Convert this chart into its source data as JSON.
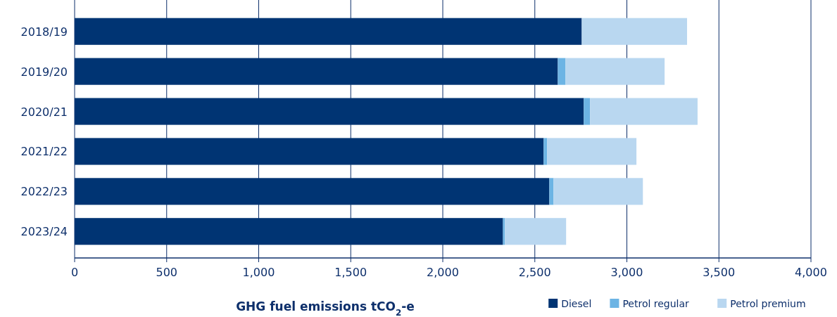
{
  "chart_data": {
    "type": "bar",
    "orientation": "horizontal",
    "stacked": true,
    "xlabel": "GHG fuel emissions tCO$_{2}$-e",
    "categories": [
      "2018/19",
      "2019/20",
      "2020/21",
      "2021/22",
      "2022/23",
      "2023/24"
    ],
    "series": [
      {
        "name": "Diesel",
        "color": "#003473",
        "values": [
          2755,
          2625,
          2766,
          2548,
          2579,
          2327
        ]
      },
      {
        "name": "Petrol regular",
        "color": "#6cb4e4",
        "values": [
          0,
          42,
          34,
          19,
          23,
          11
        ]
      },
      {
        "name": "Petrol premium",
        "color": "#b9d7f0",
        "values": [
          572,
          538,
          584,
          485,
          485,
          332
        ]
      }
    ],
    "xlim": [
      0,
      4000
    ],
    "xticks": [
      {
        "value": 0,
        "label": "0"
      },
      {
        "value": 500,
        "label": "500"
      },
      {
        "value": 1000,
        "label": "1,000"
      },
      {
        "value": 1500,
        "label": "1,500"
      },
      {
        "value": 2000,
        "label": "2,000"
      },
      {
        "value": 2500,
        "label": "2,500"
      },
      {
        "value": 3000,
        "label": "3,000"
      },
      {
        "value": 3500,
        "label": "3,500"
      },
      {
        "value": 4000,
        "label": "4,000"
      }
    ],
    "grid": "x",
    "legend": "bottom right"
  }
}
